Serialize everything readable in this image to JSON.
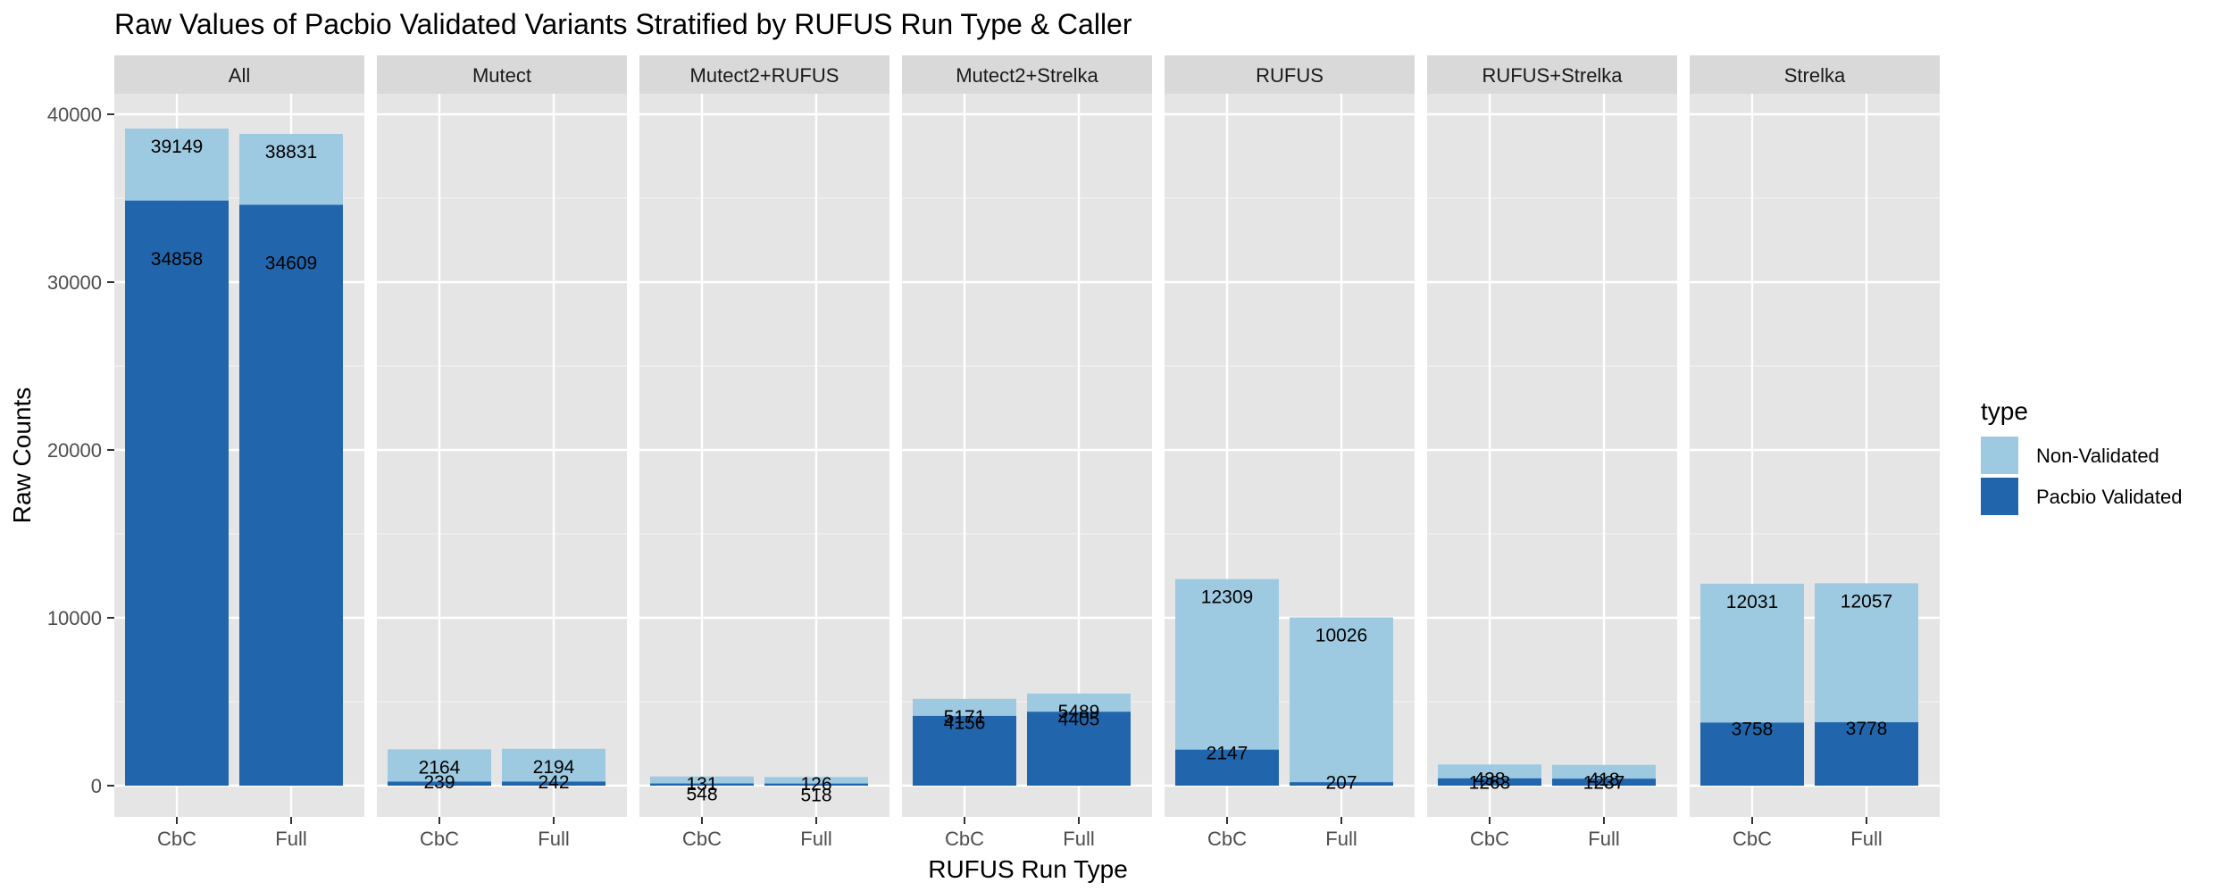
{
  "chart_data": {
    "type": "bar",
    "stacked": true,
    "faceted": true,
    "title": "Raw Values of Pacbio Validated Variants Stratified by RUFUS Run Type & Caller",
    "xlabel": "RUFUS Run Type",
    "ylabel": "Raw Counts",
    "ylim": [
      0,
      42000
    ],
    "yticks": [
      0,
      10000,
      20000,
      30000,
      40000
    ],
    "yticks_labels": [
      "0",
      "10000",
      "20000",
      "30000",
      "40000"
    ],
    "grid": true,
    "legend": {
      "title": "type",
      "position": "right",
      "entries": [
        "Non-Validated",
        "Pacbio Validated"
      ]
    },
    "colors": {
      "Non-Validated": "#9ECAE1",
      "Pacbio Validated": "#2166AC",
      "panel_bg": "#E5E5E5",
      "strip_bg": "#D9D9D9"
    },
    "categories": [
      "CbC",
      "Full"
    ],
    "facets": [
      {
        "name": "All",
        "bars": [
          {
            "category": "CbC",
            "validated": 34858,
            "total": 39149,
            "validated_label": "34858",
            "total_label": "39149"
          },
          {
            "category": "Full",
            "validated": 34609,
            "total": 38831,
            "validated_label": "34609",
            "total_label": "38831"
          }
        ]
      },
      {
        "name": "Mutect",
        "bars": [
          {
            "category": "CbC",
            "validated": 239,
            "total": 2164,
            "validated_label": "239",
            "total_label": "2164"
          },
          {
            "category": "Full",
            "validated": 242,
            "total": 2194,
            "validated_label": "242",
            "total_label": "2194"
          }
        ]
      },
      {
        "name": "Mutect2+RUFUS",
        "bars": [
          {
            "category": "CbC",
            "validated": 131,
            "total": 548,
            "validated_label": "131",
            "total_label": "548"
          },
          {
            "category": "Full",
            "validated": 126,
            "total": 518,
            "validated_label": "126",
            "total_label": "518"
          }
        ]
      },
      {
        "name": "Mutect2+Strelka",
        "bars": [
          {
            "category": "CbC",
            "validated": 4156,
            "total": 5171,
            "validated_label": "4156",
            "total_label": "5171"
          },
          {
            "category": "Full",
            "validated": 4405,
            "total": 5489,
            "validated_label": "4405",
            "total_label": "5489"
          }
        ]
      },
      {
        "name": "RUFUS",
        "bars": [
          {
            "category": "CbC",
            "validated": 2147,
            "total": 12309,
            "validated_label": "2147",
            "total_label": "12309"
          },
          {
            "category": "Full",
            "validated": 207,
            "total": 10026,
            "validated_label": "207",
            "total_label": "10026"
          }
        ]
      },
      {
        "name": "RUFUS+Strelka",
        "bars": [
          {
            "category": "CbC",
            "validated": 438,
            "total": 1263,
            "validated_label": "438",
            "total_label": "1263"
          },
          {
            "category": "Full",
            "validated": 418,
            "total": 1237,
            "validated_label": "418",
            "total_label": "1237"
          }
        ]
      },
      {
        "name": "Strelka",
        "bars": [
          {
            "category": "CbC",
            "validated": 3758,
            "total": 12031,
            "validated_label": "3758",
            "total_label": "12031"
          },
          {
            "category": "Full",
            "validated": 3778,
            "total": 12057,
            "validated_label": "3778",
            "total_label": "12057"
          }
        ]
      }
    ]
  }
}
